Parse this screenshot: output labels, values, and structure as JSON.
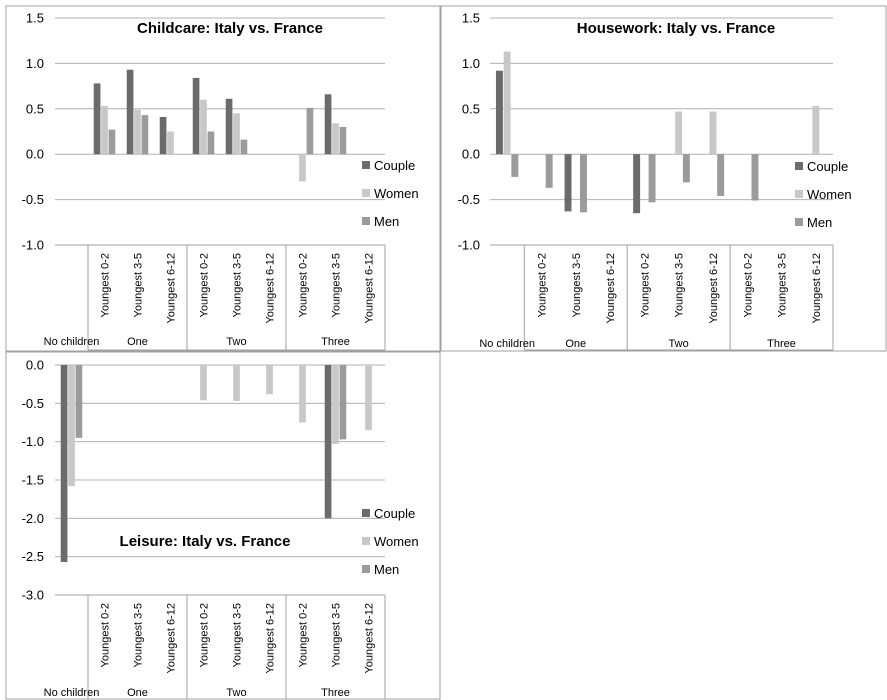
{
  "colors": {
    "Couple": "#6b6b6b",
    "Women": "#c8c8c8",
    "Men": "#9b9b9b",
    "grid": "#b0b0b0",
    "axis": "#a0a0a0"
  },
  "chart_data": [
    {
      "type": "bar",
      "title": "Childcare: Italy vs. France",
      "categories": [
        "No children",
        "Youngest 0-2",
        "Youngest 3-5",
        "Youngest 6-12",
        "Youngest 0-2",
        "Youngest 3-5",
        "Youngest 6-12",
        "Youngest 0-2",
        "Youngest 3-5",
        "Youngest 6-12"
      ],
      "groups": [
        {
          "label": "No children",
          "span": [
            0,
            0
          ]
        },
        {
          "label": "One",
          "span": [
            1,
            3
          ]
        },
        {
          "label": "Two",
          "span": [
            4,
            6
          ]
        },
        {
          "label": "Three",
          "span": [
            7,
            9
          ]
        }
      ],
      "series": [
        {
          "name": "Couple",
          "values": [
            null,
            0.78,
            0.93,
            0.41,
            0.84,
            0.61,
            null,
            null,
            0.66,
            null
          ]
        },
        {
          "name": "Women",
          "values": [
            null,
            0.53,
            0.49,
            0.25,
            0.6,
            0.45,
            null,
            -0.3,
            0.34,
            null
          ]
        },
        {
          "name": "Men",
          "values": [
            null,
            0.27,
            0.43,
            null,
            0.25,
            0.16,
            null,
            0.51,
            0.3,
            null
          ]
        }
      ],
      "ylim": [
        -1.0,
        1.5
      ],
      "yticks": [
        "1.5",
        "1.0",
        "0.5",
        "0.0",
        "-0.5",
        "-1.0"
      ],
      "grid": true,
      "legend": "right"
    },
    {
      "type": "bar",
      "title": "Housework: Italy vs. France",
      "categories": [
        "No children",
        "Youngest 0-2",
        "Youngest 3-5",
        "Youngest 6-12",
        "Youngest 0-2",
        "Youngest 3-5",
        "Youngest 6-12",
        "Youngest 0-2",
        "Youngest 3-5",
        "Youngest 6-12"
      ],
      "groups": [
        {
          "label": "No children",
          "span": [
            0,
            0
          ]
        },
        {
          "label": "One",
          "span": [
            1,
            3
          ]
        },
        {
          "label": "Two",
          "span": [
            4,
            6
          ]
        },
        {
          "label": "Three",
          "span": [
            7,
            9
          ]
        }
      ],
      "series": [
        {
          "name": "Couple",
          "values": [
            0.92,
            null,
            -0.63,
            null,
            -0.65,
            null,
            null,
            null,
            null,
            null
          ]
        },
        {
          "name": "Women",
          "values": [
            1.13,
            null,
            null,
            null,
            null,
            0.47,
            0.47,
            null,
            null,
            0.53
          ]
        },
        {
          "name": "Men",
          "values": [
            -0.25,
            -0.37,
            -0.64,
            null,
            -0.53,
            -0.31,
            -0.46,
            -0.51,
            null,
            null
          ]
        }
      ],
      "ylim": [
        -1.0,
        1.5
      ],
      "yticks": [
        "1.5",
        "1.0",
        "0.5",
        "0.0",
        "-0.5",
        "-1.0"
      ],
      "grid": true,
      "legend": "right"
    },
    {
      "type": "bar",
      "title": "Leisure: Italy vs. France",
      "categories": [
        "No children",
        "Youngest 0-2",
        "Youngest 3-5",
        "Youngest 6-12",
        "Youngest 0-2",
        "Youngest 3-5",
        "Youngest 6-12",
        "Youngest 0-2",
        "Youngest 3-5",
        "Youngest 6-12"
      ],
      "groups": [
        {
          "label": "No children",
          "span": [
            0,
            0
          ]
        },
        {
          "label": "One",
          "span": [
            1,
            3
          ]
        },
        {
          "label": "Two",
          "span": [
            4,
            6
          ]
        },
        {
          "label": "Three",
          "span": [
            7,
            9
          ]
        }
      ],
      "series": [
        {
          "name": "Couple",
          "values": [
            -2.57,
            null,
            null,
            null,
            null,
            null,
            null,
            null,
            -2.0,
            null
          ]
        },
        {
          "name": "Women",
          "values": [
            -1.58,
            null,
            null,
            null,
            -0.46,
            -0.47,
            -0.38,
            -0.75,
            -1.03,
            -0.85
          ]
        },
        {
          "name": "Men",
          "values": [
            -0.95,
            null,
            null,
            null,
            null,
            null,
            null,
            null,
            -0.97,
            null
          ]
        }
      ],
      "ylim": [
        -3.0,
        0.0
      ],
      "yticks": [
        "0.0",
        "-0.5",
        "-1.0",
        "-1.5",
        "-2.0",
        "-2.5",
        "-3.0"
      ],
      "grid": true,
      "legend": "right"
    }
  ]
}
